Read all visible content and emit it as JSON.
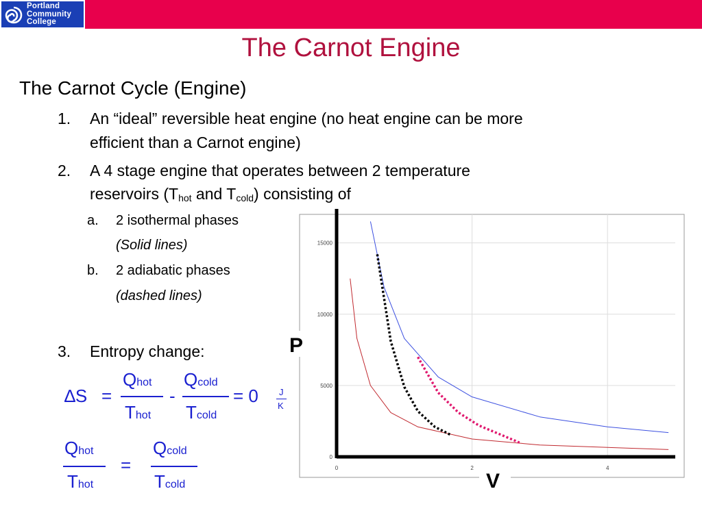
{
  "logo": {
    "lines": [
      "Portland",
      "Community",
      "College"
    ]
  },
  "slide": {
    "title": "The Carnot Engine",
    "heading": "The Carnot Cycle (Engine)",
    "item1": {
      "num": "1.",
      "line1": "An “ideal” reversible heat engine (no heat engine can be more",
      "line2": "efficient than a Carnot engine)"
    },
    "item2": {
      "num": "2.",
      "line1": "A 4 stage engine that operates between 2 temperature",
      "line2_pre": "reservoirs (T",
      "sub_hot": "hot",
      "line2_mid": " and T",
      "sub_cold": "cold",
      "line2_post": ") consisting of"
    },
    "sub_a": {
      "label": "a.",
      "text": "2 isothermal phases",
      "note": "(Solid lines)"
    },
    "sub_b": {
      "label": "b.",
      "text": "2 adiabatic phases",
      "note": "(dashed lines)"
    },
    "item3": {
      "num": "3.",
      "text": "Entropy change:"
    }
  },
  "equation1": {
    "delta": "∆S",
    "equals": "=",
    "minus": "-",
    "rhs": "= 0",
    "unit_num": "J",
    "unit_den": "K",
    "q": "Q",
    "t": "T",
    "hot": "hot",
    "cold": "cold"
  },
  "equation2": {
    "equals": "="
  },
  "chart_data": {
    "type": "line",
    "xlabel": "V",
    "ylabel": "P",
    "xlim": [
      0,
      5
    ],
    "ylim": [
      0,
      17000
    ],
    "x_ticks": [
      "0",
      "2",
      "4"
    ],
    "y_ticks": [
      "0",
      "5000",
      "10000",
      "15000"
    ],
    "grid": true,
    "series": [
      {
        "style": "solid",
        "color": "#3b4fe0",
        "x": [
          0.5,
          0.7,
          1.0,
          1.5,
          2.0,
          3.0,
          4.0,
          4.9
        ],
        "y": [
          16500,
          11900,
          8300,
          5600,
          4200,
          2800,
          2100,
          1700
        ]
      },
      {
        "style": "solid",
        "color": "#c0282e",
        "x": [
          0.2,
          0.3,
          0.5,
          0.8,
          1.2,
          2.0,
          3.0,
          4.9
        ],
        "y": [
          12500,
          8300,
          5000,
          3100,
          2100,
          1250,
          830,
          510
        ]
      },
      {
        "style": "dotted",
        "color": "#000000",
        "x": [
          0.6,
          0.8,
          1.0,
          1.2,
          1.45,
          1.7
        ],
        "y": [
          14200,
          8100,
          4900,
          3200,
          2100,
          1500
        ]
      },
      {
        "style": "dotted",
        "color": "#e0186e",
        "x": [
          1.2,
          1.5,
          1.8,
          2.1,
          2.4,
          2.7
        ],
        "y": [
          7000,
          4500,
          3100,
          2200,
          1600,
          1000
        ]
      }
    ]
  }
}
